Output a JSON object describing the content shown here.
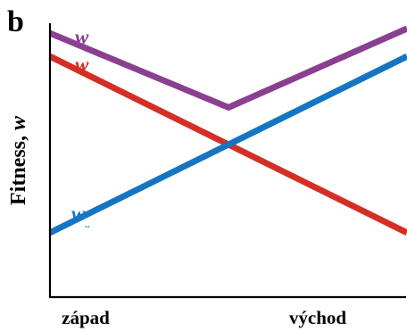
{
  "chart_data": {
    "type": "line",
    "panel_label": "b",
    "xlabel": "",
    "ylabel": "Fitness, w",
    "ylabel_parts": {
      "text": "Fitness, ",
      "italic": "w"
    },
    "x": [
      0,
      0.5,
      1
    ],
    "tick_labels": [
      {
        "x": 0.1,
        "label": "západ"
      },
      {
        "x": 0.75,
        "label": "východ"
      }
    ],
    "xlim": [
      0,
      1
    ],
    "ylim": [
      0,
      1
    ],
    "grid": false,
    "series": [
      {
        "name": "w",
        "label_subscript": "..",
        "color": "#8a4090",
        "values": [
          0.98,
          0.66,
          1.0
        ]
      },
      {
        "name": "w",
        "label_subscript": "..",
        "color": "#d42f25",
        "values": [
          0.88,
          0.5,
          0.12
        ]
      },
      {
        "name": "w",
        "label_subscript": "..",
        "color": "#1575c3",
        "values": [
          0.12,
          0.5,
          0.88
        ]
      }
    ],
    "colors": {
      "axis": "#000000",
      "purple": "#8a4090",
      "red": "#d42f25",
      "blue": "#1575c3"
    }
  }
}
